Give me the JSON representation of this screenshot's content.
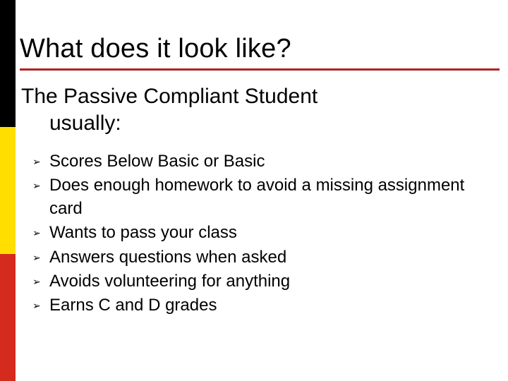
{
  "colors": {
    "sidebar_black": "#000000",
    "sidebar_yellow": "#ffde00",
    "sidebar_red": "#d52b1e",
    "underline": "#b22222",
    "background": "#ffffff",
    "text": "#000000"
  },
  "typography": {
    "title_fontsize": 38,
    "subtitle_fontsize": 30,
    "bullet_fontsize": 24,
    "font_family": "Arial"
  },
  "title": "What does it look like?",
  "subtitle_line1": "The Passive Compliant Student",
  "subtitle_line2": "usually:",
  "bullets": [
    "Scores Below Basic or Basic",
    "Does enough homework to avoid a missing assignment card",
    "Wants to pass your class",
    "Answers questions when asked",
    "Avoids volunteering for anything",
    "Earns C and D grades"
  ],
  "bullet_marker": "➢"
}
